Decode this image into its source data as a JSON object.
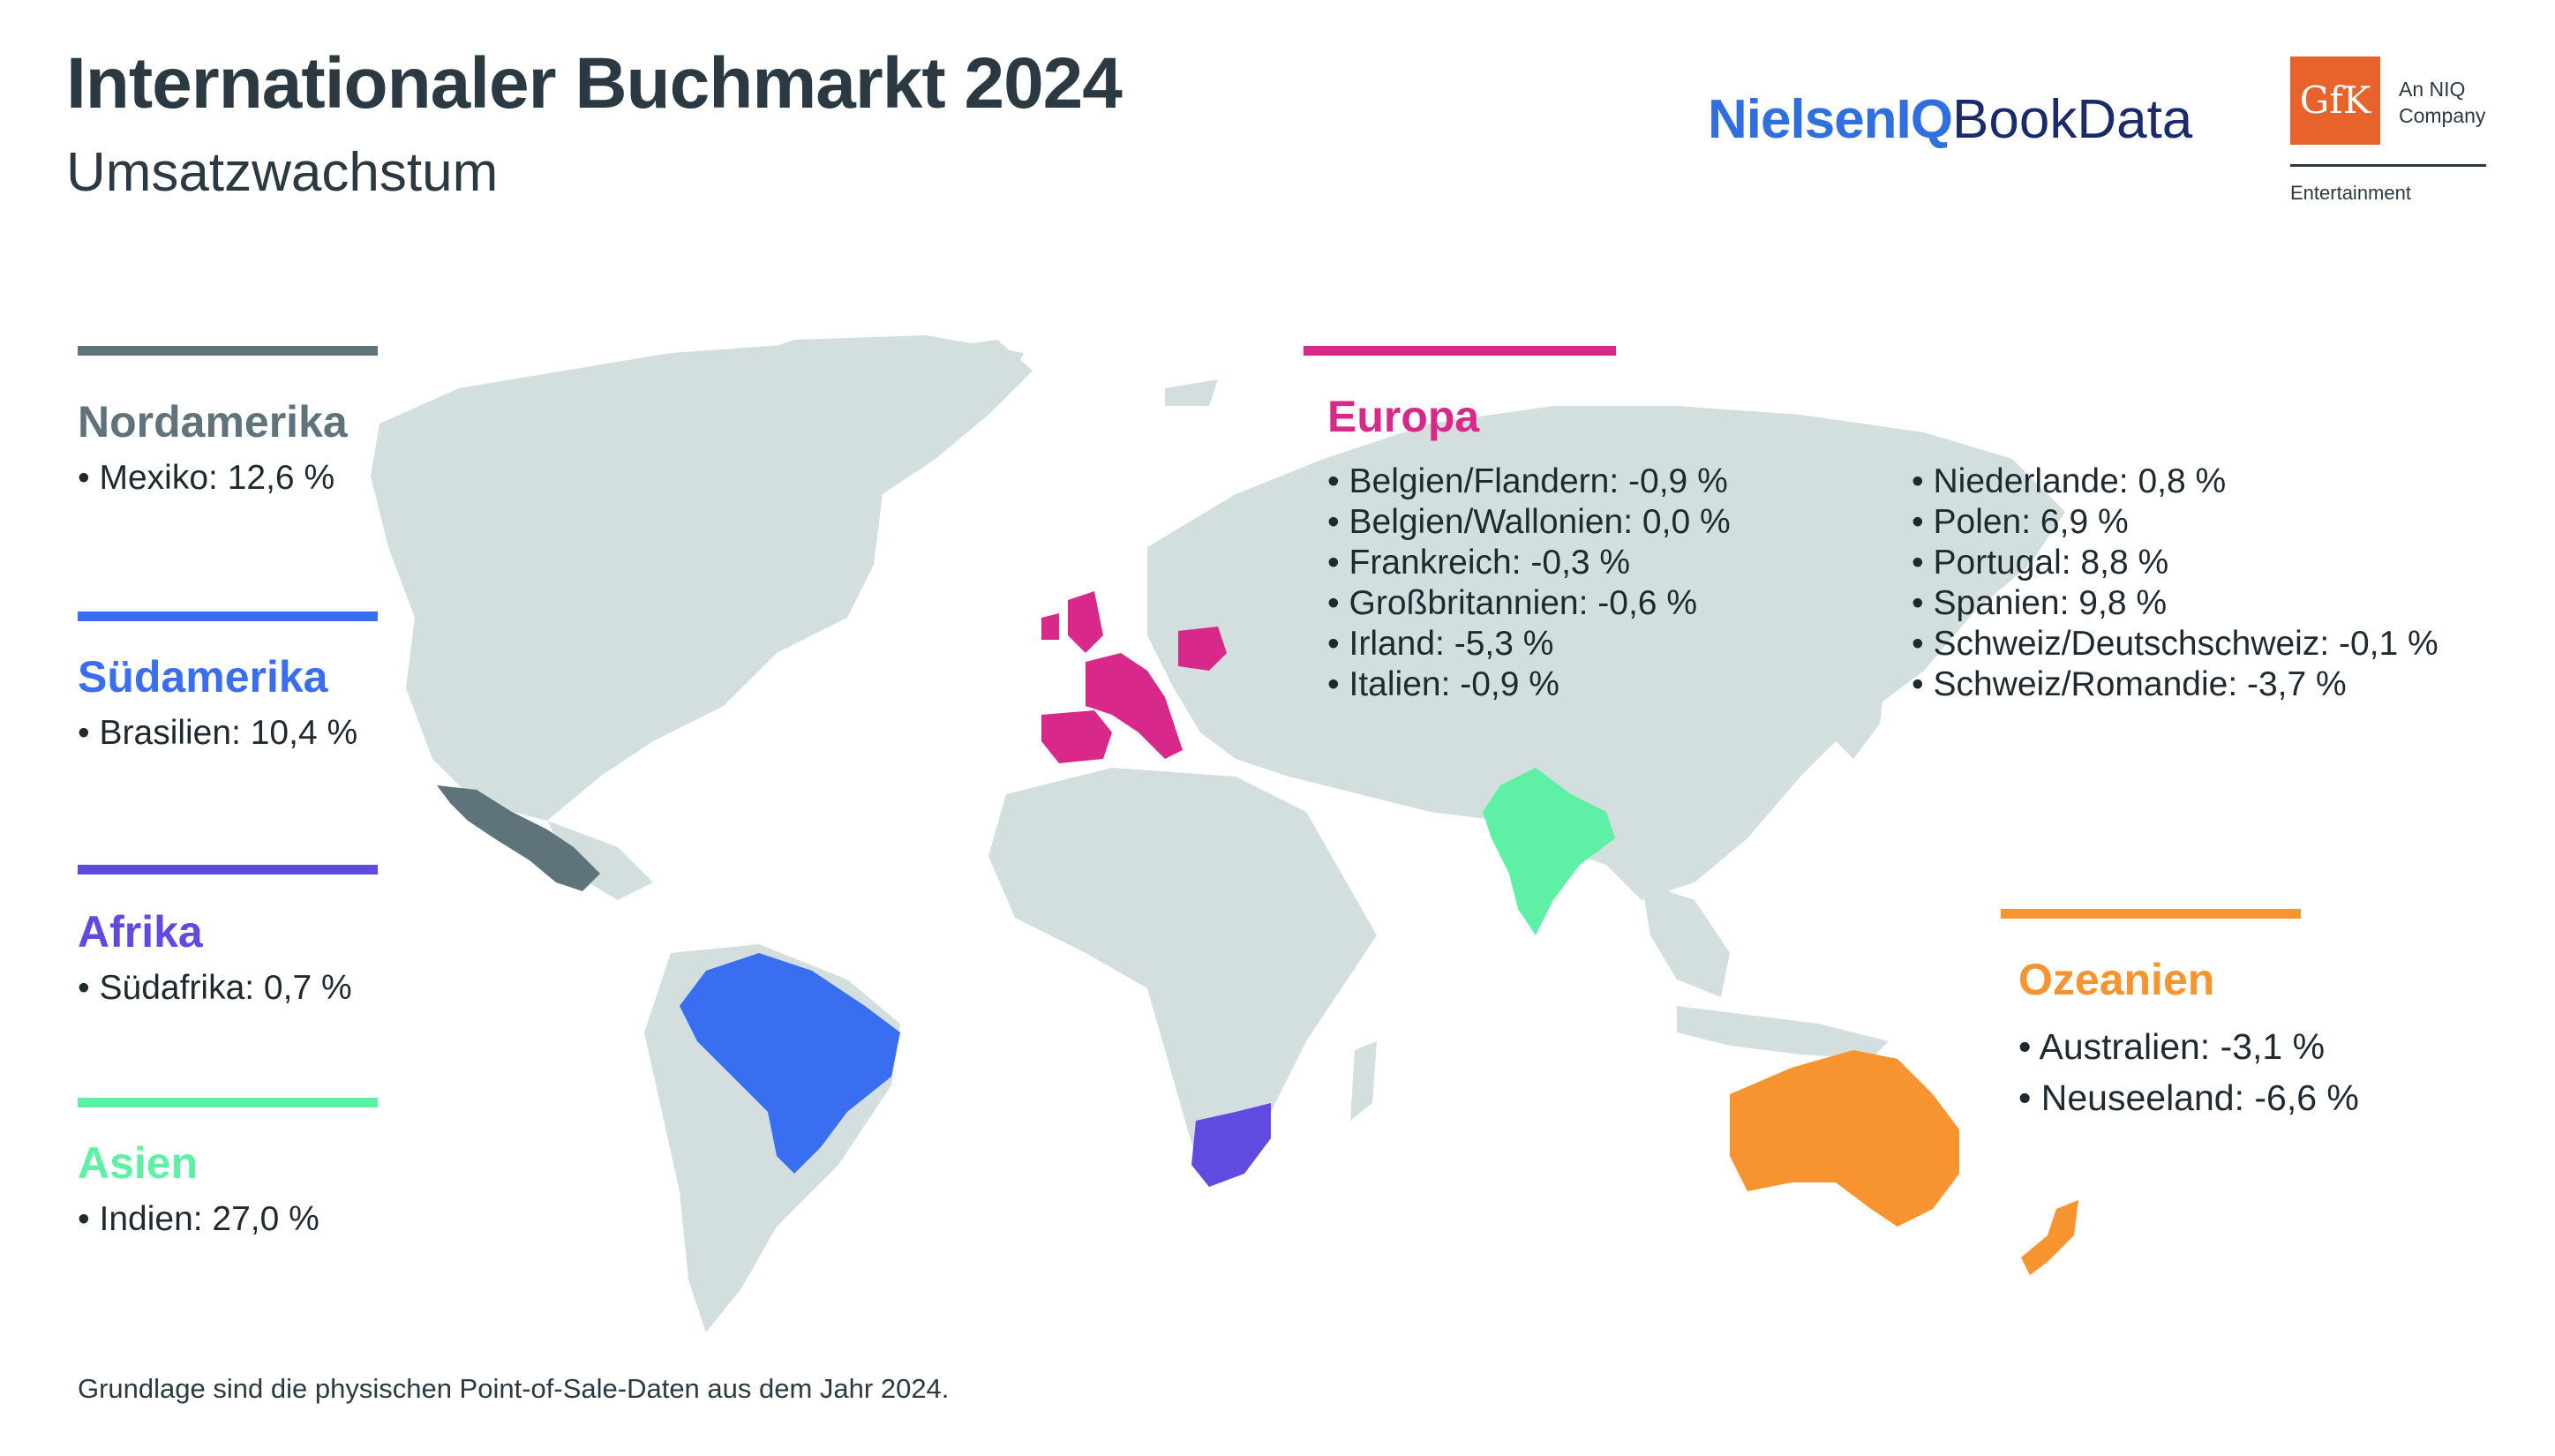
{
  "header": {
    "title": "Internationaler Buchmarkt 2024",
    "subtitle": "Umsatzwachstum"
  },
  "logos": {
    "niq_part1": "NielsenIQ",
    "niq_part2": "BookData",
    "gfk_mark": "GfK",
    "gfk_tag_line1": "An NIQ",
    "gfk_tag_line2": "Company",
    "gfk_division": "Entertainment"
  },
  "colors": {
    "land": "#d3dede",
    "nordamerika": "#5f737b",
    "suedamerika": "#3a6ef0",
    "afrika": "#5f4be0",
    "asien": "#5ef0a4",
    "europa": "#d8288a",
    "ozeanien": "#f7942f"
  },
  "regions": {
    "nordamerika": {
      "name": "Nordamerika",
      "items": [
        "Mexiko: 12,6 %"
      ]
    },
    "suedamerika": {
      "name": "Südamerika",
      "items": [
        "Brasilien: 10,4 %"
      ]
    },
    "afrika": {
      "name": "Afrika",
      "items": [
        "Südafrika: 0,7 %"
      ]
    },
    "asien": {
      "name": "Asien",
      "items": [
        "Indien: 27,0 %"
      ]
    },
    "europa": {
      "name": "Europa",
      "items_col1": [
        "Belgien/Flandern: -0,9 %",
        "Belgien/Wallonien: 0,0 %",
        "Frankreich: -0,3 %",
        "Großbritannien: -0,6 %",
        "Irland: -5,3 %",
        "Italien: -0,9 %"
      ],
      "items_col2": [
        "Niederlande: 0,8 %",
        "Polen: 6,9 %",
        "Portugal: 8,8 %",
        "Spanien: 9,8 %",
        "Schweiz/Deutschschweiz: -0,1 %",
        "Schweiz/Romandie: -3,7 %"
      ]
    },
    "ozeanien": {
      "name": "Ozeanien",
      "items": [
        "Australien: -3,1 %",
        "Neuseeland: -6,6 %"
      ]
    }
  },
  "footnote": "Grundlage sind die physischen Point-of-Sale-Daten aus dem Jahr 2024."
}
